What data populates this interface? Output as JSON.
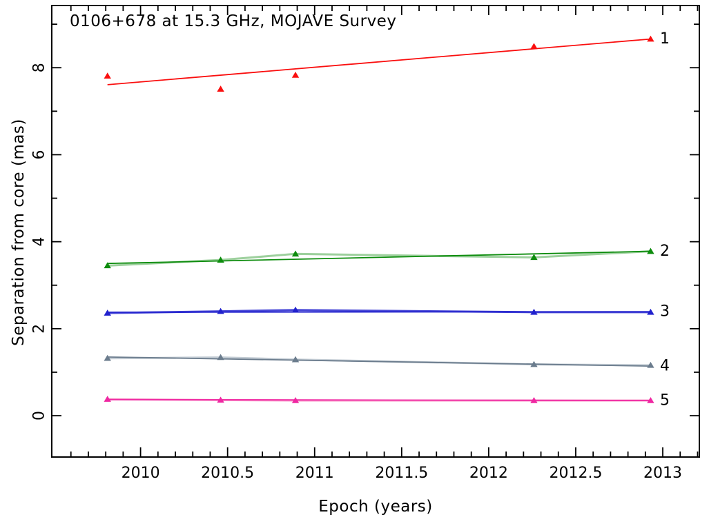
{
  "chart_data": {
    "type": "scatter",
    "title": "0106+678 at 15.3 GHz, MOJAVE Survey",
    "xlabel": "Epoch (years)",
    "ylabel": "Separation from core (mas)",
    "xlim": [
      2009.49,
      2013.21
    ],
    "ylim": [
      -0.95,
      9.43
    ],
    "grid": false,
    "x_major_ticks": [
      2010,
      2010.5,
      2011,
      2011.5,
      2012,
      2012.5,
      2013
    ],
    "x_tick_labels": [
      "2010",
      "2010.5",
      "2011",
      "2011.5",
      "2012",
      "2012.5",
      "2013"
    ],
    "x_minor_step": 0.1,
    "y_major_ticks": [
      0,
      2,
      4,
      6,
      8
    ],
    "y_tick_labels": [
      "0",
      "2",
      "4",
      "6",
      "8"
    ],
    "y_minor_ticks": [
      1,
      3,
      5,
      7,
      9
    ],
    "marker": "filled-triangle",
    "legend_position": "right-of-last-point",
    "x": [
      2009.81,
      2010.46,
      2010.89,
      2012.26,
      2012.93
    ],
    "series": [
      {
        "name": "1",
        "label": "1",
        "color": "#fa0f0f",
        "label_color": "#f59090",
        "connect_color": null,
        "values": [
          7.81,
          7.51,
          7.83,
          8.49,
          8.66
        ],
        "fit": [
          7.61,
          8.66
        ]
      },
      {
        "name": "2",
        "label": "2",
        "color": "#0d8c0d",
        "label_color": "#93c693",
        "connect_color": "#9dd09d",
        "values": [
          3.45,
          3.58,
          3.72,
          3.64,
          3.78
        ],
        "fit": [
          3.5,
          3.78
        ]
      },
      {
        "name": "3",
        "label": "3",
        "color": "#2121cd",
        "label_color": "#9a9ada",
        "connect_color": "#4747d6",
        "values": [
          2.36,
          2.4,
          2.43,
          2.38,
          2.38
        ],
        "fit": [
          2.38,
          2.39
        ]
      },
      {
        "name": "4",
        "label": "4",
        "color": "#6b7c8d",
        "label_color": "#bfc9d1",
        "connect_color": "#c3ccd4",
        "values": [
          1.32,
          1.34,
          1.29,
          1.18,
          1.16
        ],
        "fit": [
          1.35,
          1.14
        ]
      },
      {
        "name": "5",
        "label": "5",
        "color": "#ef28a2",
        "label_color": "#f79ccb",
        "connect_color": "#fa99ca",
        "values": [
          0.38,
          0.36,
          0.35,
          0.35,
          0.35
        ],
        "fit": [
          0.37,
          0.35
        ]
      }
    ]
  }
}
